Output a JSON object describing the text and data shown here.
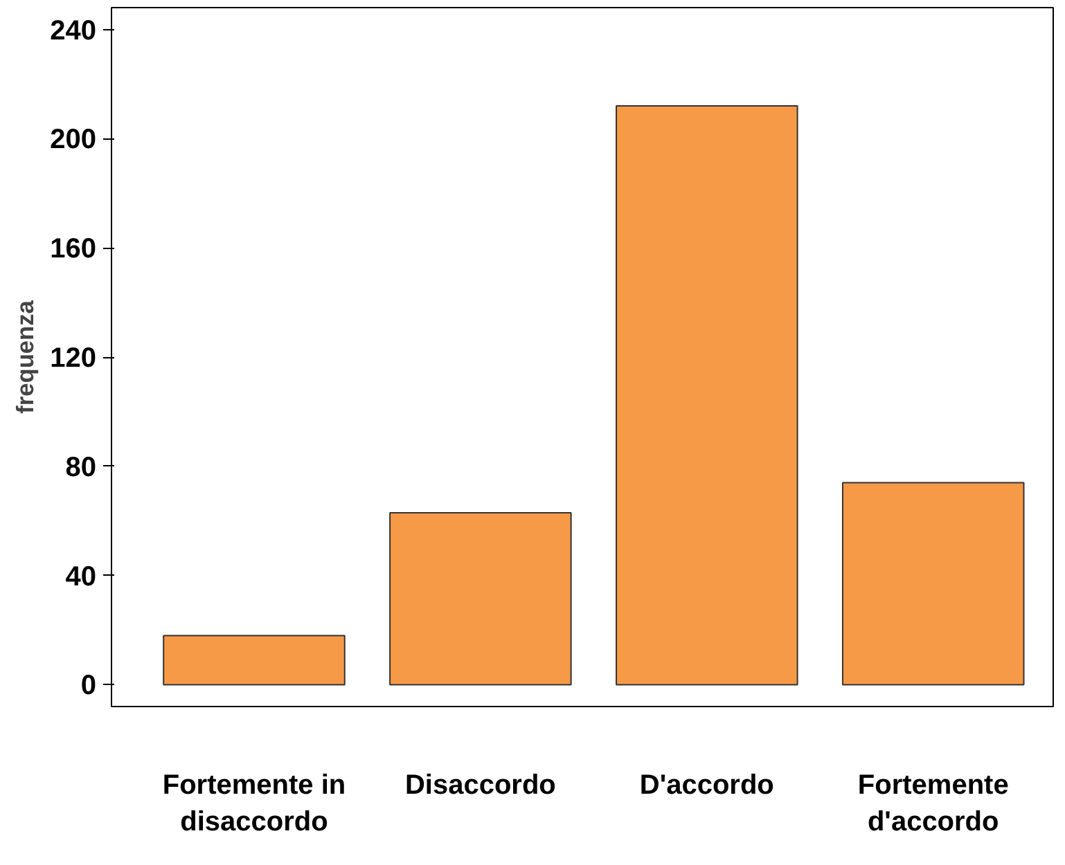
{
  "chart_data": {
    "type": "bar",
    "ylabel": "frequenza",
    "categories": [
      "Fortemente in\ndisaccordo",
      "Disaccordo",
      "D'accordo",
      "Fortemente\nd'accordo"
    ],
    "values": [
      18,
      63,
      212,
      74
    ],
    "color": "#f79a48",
    "ylim": [
      -8,
      248
    ],
    "yticks": [
      0,
      40,
      80,
      120,
      160,
      200,
      240
    ],
    "grid": false
  }
}
